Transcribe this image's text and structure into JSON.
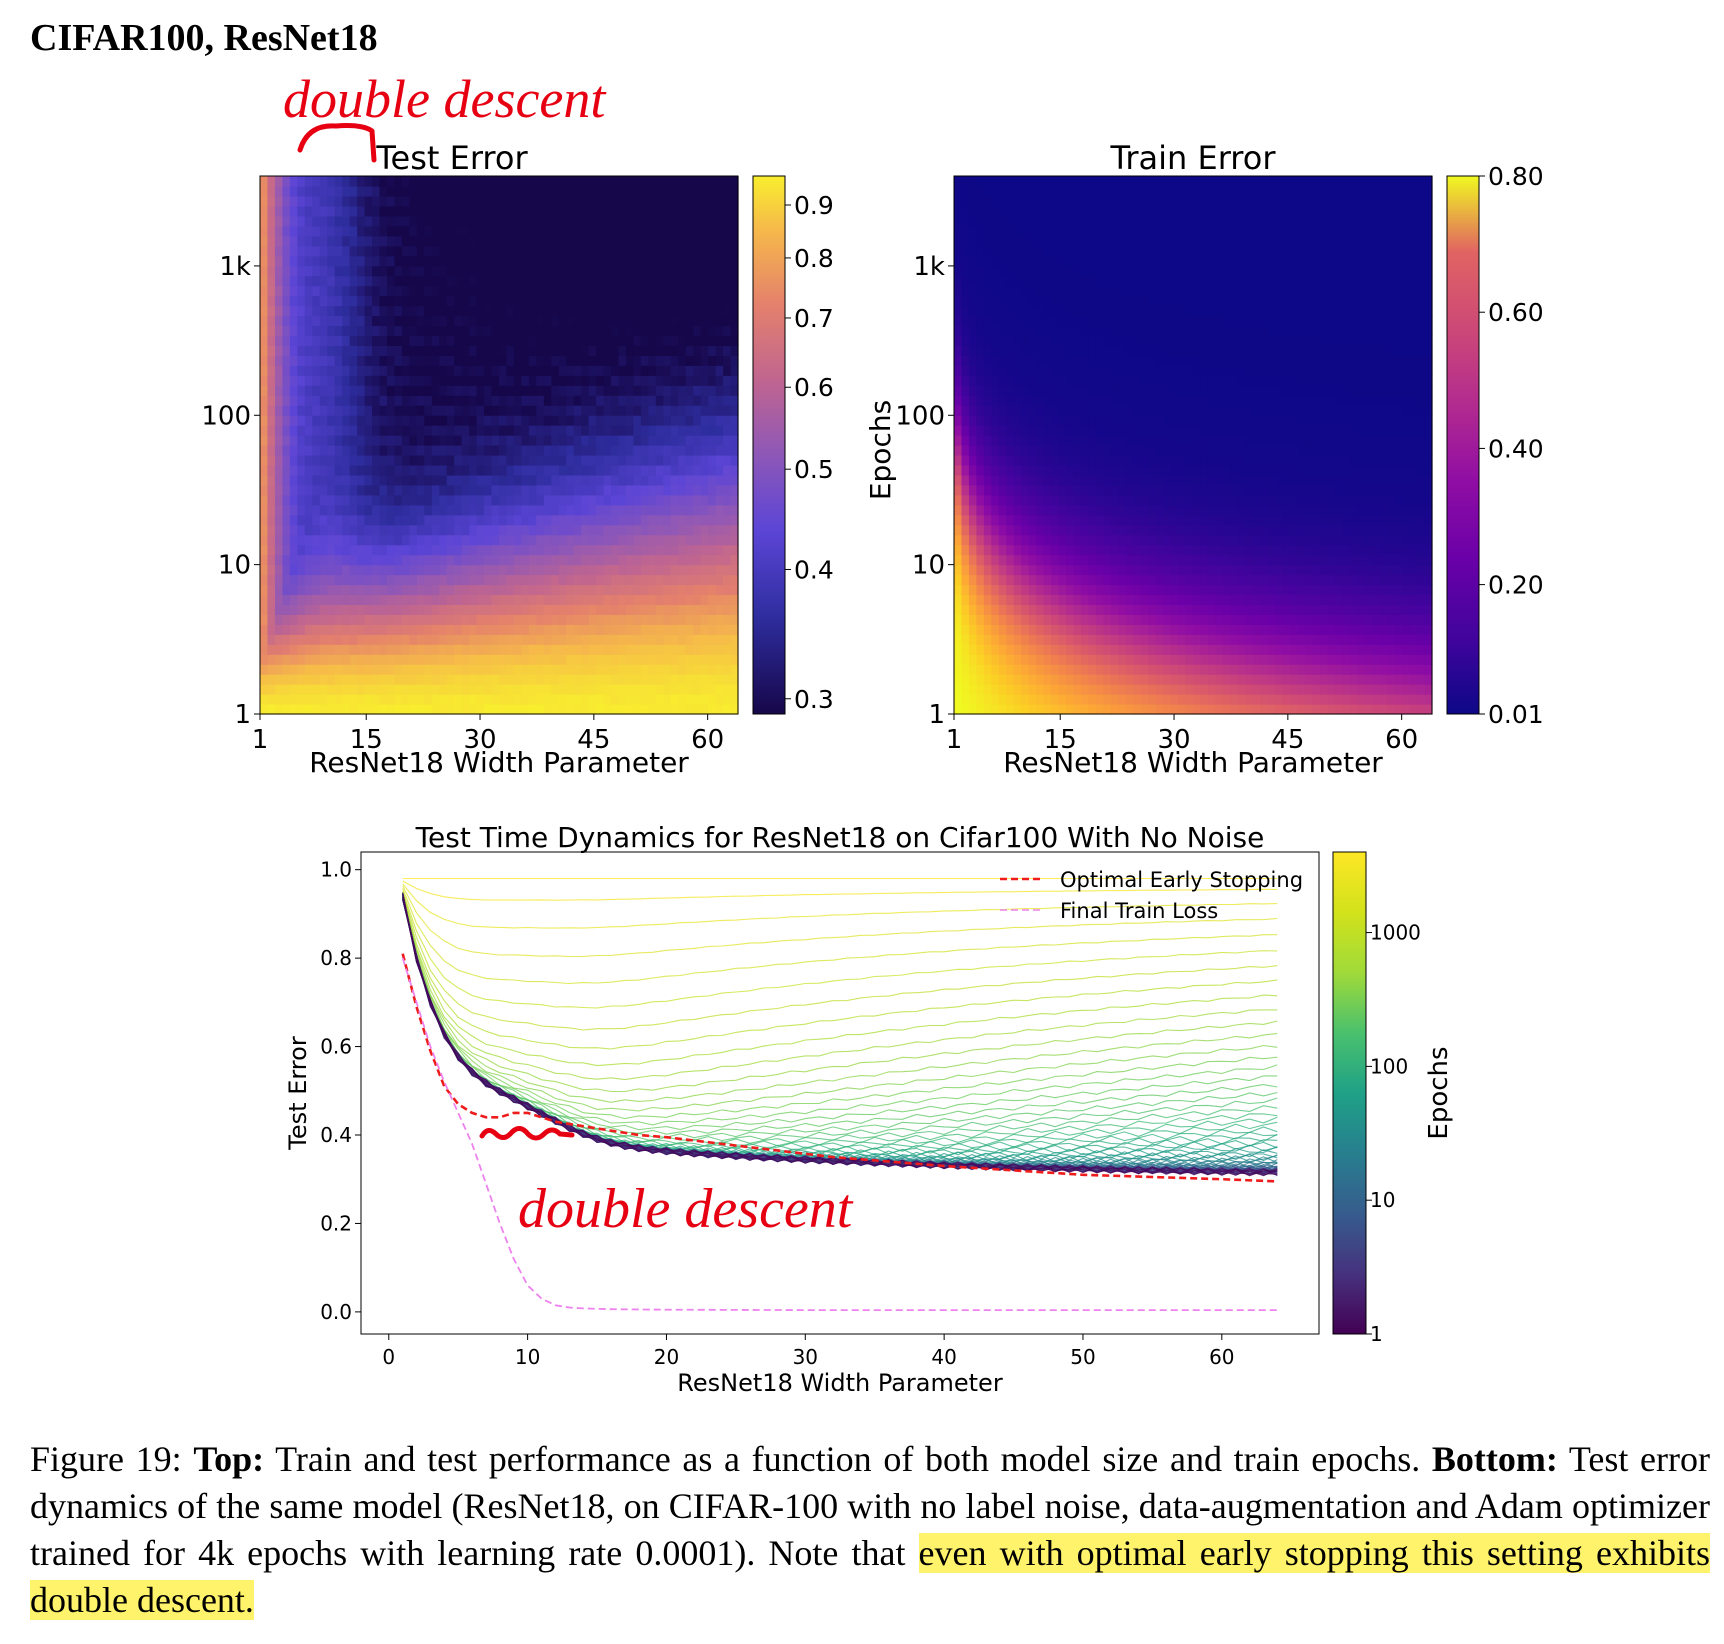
{
  "header": "CIFAR100, ResNet18",
  "annotations": {
    "top": "double descent",
    "bottom": "double descent"
  },
  "colors": {
    "annotation": "#e60012",
    "optimal_early_stopping": "#ee1c1c",
    "final_train_loss": "#ee82ee",
    "caption_highlight": "#fff36b"
  },
  "chart_data": [
    {
      "type": "heatmap",
      "title": "Test Error",
      "xlabel": "ResNet18 Width Parameter",
      "ylabel": "",
      "x_ticks": [
        "1",
        "15",
        "30",
        "45",
        "60"
      ],
      "x_range": [
        1,
        64
      ],
      "y_ticks": [
        "1",
        "10",
        "100",
        "1k"
      ],
      "y_scale": "log",
      "y_range": [
        1,
        4000
      ],
      "colormap": "plasma",
      "colorbar_ticks": [
        "0.9",
        "0.8",
        "0.7",
        "0.6",
        "0.5",
        "0.4",
        "0.3"
      ],
      "colorbar_range": [
        0.29,
        0.96
      ],
      "colorbar_scale": "log"
    },
    {
      "type": "heatmap",
      "title": "Train Error",
      "xlabel": "ResNet18 Width Parameter",
      "ylabel": "Epochs",
      "x_ticks": [
        "1",
        "15",
        "30",
        "45",
        "60"
      ],
      "x_range": [
        1,
        64
      ],
      "y_ticks": [
        "1",
        "10",
        "100",
        "1k"
      ],
      "y_scale": "log",
      "y_range": [
        1,
        4000
      ],
      "colormap": "plasma",
      "colorbar_ticks": [
        "0.80",
        "0.60",
        "0.40",
        "0.20",
        "0.01"
      ],
      "colorbar_range": [
        0.01,
        0.8
      ],
      "colorbar_scale": "linear"
    },
    {
      "type": "line",
      "title": "Test Time Dynamics for ResNet18 on Cifar100 With No Noise",
      "xlabel": "ResNet18 Width Parameter",
      "ylabel": "Test Error",
      "x_ticks": [
        "0",
        "10",
        "20",
        "30",
        "40",
        "50",
        "60"
      ],
      "y_ticks": [
        "0.0",
        "0.2",
        "0.4",
        "0.6",
        "0.8",
        "1.0"
      ],
      "xlim": [
        -2,
        67
      ],
      "ylim": [
        -0.05,
        1.04
      ],
      "legend_position": "top-right",
      "colormap": "viridis",
      "colorbar_label": "Epochs",
      "colorbar_ticks": [
        "1",
        "10",
        "100",
        "1000"
      ],
      "colorbar_scale": "log",
      "colorbar_range": [
        1,
        4000
      ],
      "series": [
        {
          "name": "Optimal Early Stopping",
          "style": "dashed",
          "x": [
            1,
            2,
            3,
            4,
            5,
            6,
            7,
            8,
            9,
            10,
            12,
            14,
            16,
            18,
            20,
            24,
            28,
            32,
            36,
            40,
            45,
            50,
            55,
            60,
            64
          ],
          "y": [
            0.81,
            0.69,
            0.59,
            0.51,
            0.47,
            0.45,
            0.44,
            0.44,
            0.45,
            0.45,
            0.43,
            0.42,
            0.41,
            0.4,
            0.395,
            0.38,
            0.365,
            0.35,
            0.34,
            0.33,
            0.32,
            0.31,
            0.305,
            0.3,
            0.295
          ]
        },
        {
          "name": "Final Train Loss",
          "style": "dashed",
          "x": [
            1,
            2,
            3,
            4,
            5,
            6,
            7,
            8,
            9,
            10,
            11,
            12,
            13,
            14,
            16,
            20,
            30,
            40,
            50,
            60,
            64
          ],
          "y": [
            0.8,
            0.7,
            0.6,
            0.52,
            0.45,
            0.38,
            0.29,
            0.2,
            0.12,
            0.06,
            0.03,
            0.015,
            0.01,
            0.008,
            0.006,
            0.005,
            0.004,
            0.004,
            0.004,
            0.004,
            0.004
          ]
        }
      ]
    }
  ],
  "caption": {
    "prefix": "Figure 19: ",
    "top_label": "Top:",
    "top_text": " Train and test performance as a function of both model size and train epochs. ",
    "bottom_label": "Bottom:",
    "bottom_text": " Test error dynamics of the same model (ResNet18, on CIFAR-100 with no label noise, data-augmentation and Adam optimizer trained for 4k epochs with learning rate 0.0001). Note that ",
    "highlighted": "even with optimal early stopping this setting exhibits double descent."
  }
}
